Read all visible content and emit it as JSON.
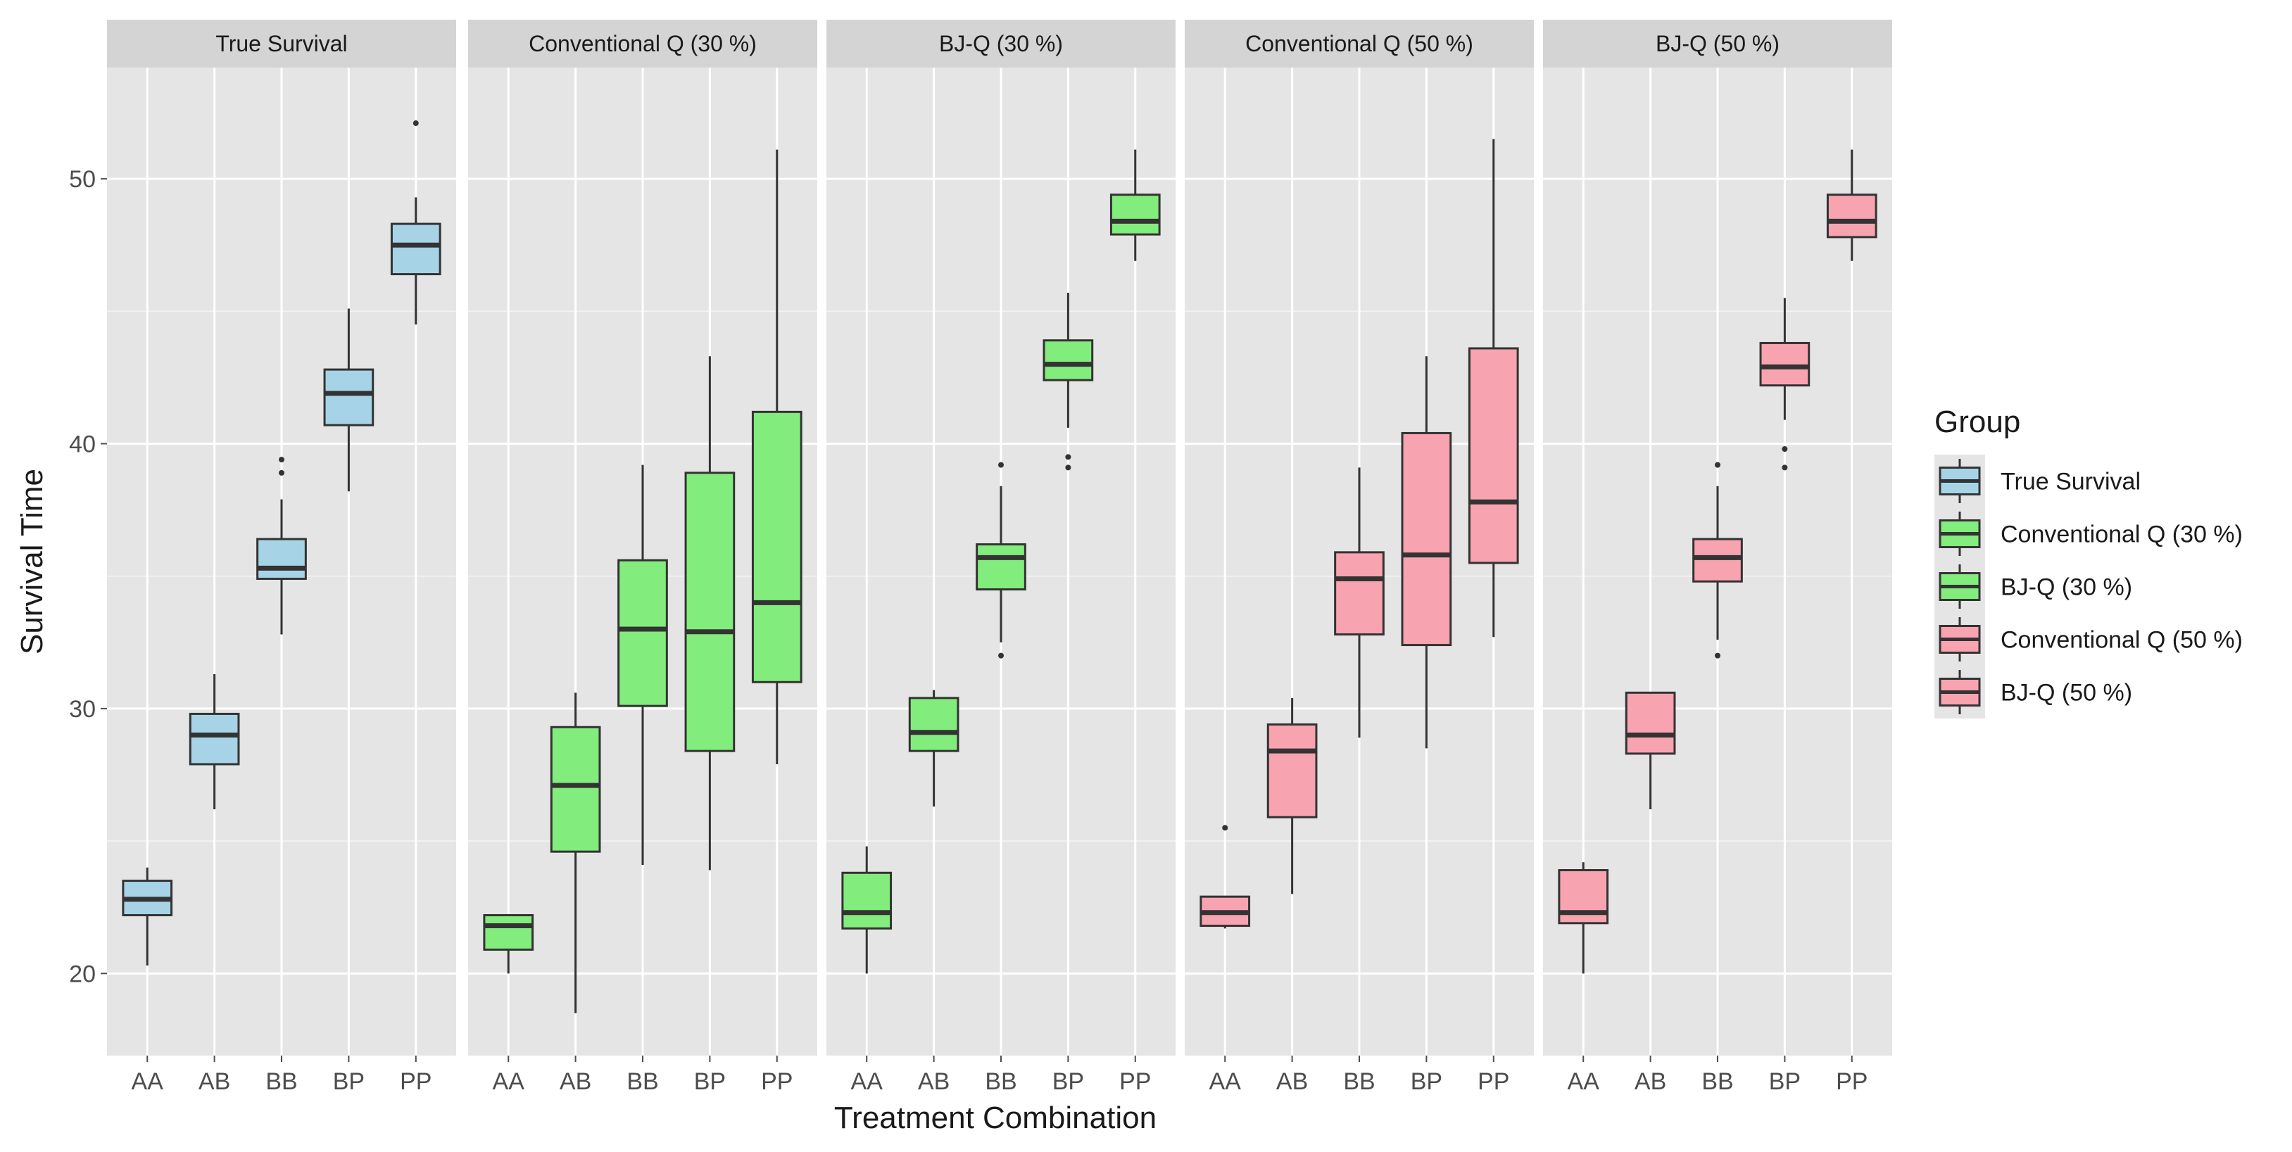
{
  "chart_data": {
    "type": "boxplot",
    "xlabel": "Treatment Combination",
    "ylabel": "Survival Time",
    "ylim": [
      16.9,
      54.2
    ],
    "yticks": [
      20,
      30,
      40,
      50
    ],
    "categories": [
      "AA",
      "AB",
      "BB",
      "BP",
      "PP"
    ],
    "legend": {
      "title": "Group",
      "position": "right",
      "items": [
        {
          "label": "True Survival",
          "color": "#a6d4e6"
        },
        {
          "label": "Conventional Q (30 %)",
          "color": "#82ec7d"
        },
        {
          "label": "BJ-Q (30 %)",
          "color": "#82ec7d"
        },
        {
          "label": "Conventional Q (50 %)",
          "color": "#f8a3b0"
        },
        {
          "label": "BJ-Q (50 %)",
          "color": "#f8a3b0"
        }
      ]
    },
    "colors": {
      "panel_bg": "#e5e5e5",
      "strip_bg": "#d4d4d4",
      "grid": "#ffffff",
      "box_line": "#333333",
      "text": "#1a1a1a",
      "tick_text": "#4d4d4d"
    },
    "panels": [
      {
        "title": "True Survival",
        "fill": "#a6d4e6",
        "boxes": [
          {
            "category": "AA",
            "whisker_low": 20.3,
            "q1": 22.2,
            "median": 22.8,
            "q3": 23.5,
            "whisker_high": 24.0,
            "outliers": []
          },
          {
            "category": "AB",
            "whisker_low": 26.2,
            "q1": 27.9,
            "median": 29.0,
            "q3": 29.8,
            "whisker_high": 31.3,
            "outliers": []
          },
          {
            "category": "BB",
            "whisker_low": 32.8,
            "q1": 34.9,
            "median": 35.3,
            "q3": 36.4,
            "whisker_high": 37.9,
            "outliers": [
              38.9,
              39.4
            ]
          },
          {
            "category": "BP",
            "whisker_low": 38.2,
            "q1": 40.7,
            "median": 41.9,
            "q3": 42.8,
            "whisker_high": 45.1,
            "outliers": []
          },
          {
            "category": "PP",
            "whisker_low": 44.5,
            "q1": 46.4,
            "median": 47.5,
            "q3": 48.3,
            "whisker_high": 49.3,
            "outliers": [
              52.1
            ]
          }
        ]
      },
      {
        "title": "Conventional Q (30 %)",
        "fill": "#82ec7d",
        "boxes": [
          {
            "category": "AA",
            "whisker_low": 20.0,
            "q1": 20.9,
            "median": 21.8,
            "q3": 22.2,
            "whisker_high": 22.2,
            "outliers": []
          },
          {
            "category": "AB",
            "whisker_low": 18.5,
            "q1": 24.6,
            "median": 27.1,
            "q3": 29.3,
            "whisker_high": 30.6,
            "outliers": []
          },
          {
            "category": "BB",
            "whisker_low": 24.1,
            "q1": 30.1,
            "median": 33.0,
            "q3": 35.6,
            "whisker_high": 39.2,
            "outliers": []
          },
          {
            "category": "BP",
            "whisker_low": 23.9,
            "q1": 28.4,
            "median": 32.9,
            "q3": 38.9,
            "whisker_high": 43.3,
            "outliers": []
          },
          {
            "category": "PP",
            "whisker_low": 27.9,
            "q1": 31.0,
            "median": 34.0,
            "q3": 41.2,
            "whisker_high": 51.1,
            "outliers": []
          }
        ]
      },
      {
        "title": "BJ-Q (30 %)",
        "fill": "#82ec7d",
        "boxes": [
          {
            "category": "AA",
            "whisker_low": 20.0,
            "q1": 21.7,
            "median": 22.3,
            "q3": 23.8,
            "whisker_high": 24.8,
            "outliers": []
          },
          {
            "category": "AB",
            "whisker_low": 26.3,
            "q1": 28.4,
            "median": 29.1,
            "q3": 30.4,
            "whisker_high": 30.7,
            "outliers": []
          },
          {
            "category": "BB",
            "whisker_low": 32.5,
            "q1": 34.5,
            "median": 35.7,
            "q3": 36.2,
            "whisker_high": 38.4,
            "outliers": [
              32.0,
              39.2
            ]
          },
          {
            "category": "BP",
            "whisker_low": 40.6,
            "q1": 42.4,
            "median": 43.0,
            "q3": 43.9,
            "whisker_high": 45.7,
            "outliers": [
              39.1,
              39.5
            ]
          },
          {
            "category": "PP",
            "whisker_low": 46.9,
            "q1": 47.9,
            "median": 48.4,
            "q3": 49.4,
            "whisker_high": 51.1,
            "outliers": []
          }
        ]
      },
      {
        "title": "Conventional Q (50 %)",
        "fill": "#f8a3b0",
        "boxes": [
          {
            "category": "AA",
            "whisker_low": 21.7,
            "q1": 21.8,
            "median": 22.3,
            "q3": 22.9,
            "whisker_high": 22.9,
            "outliers": [
              25.5
            ]
          },
          {
            "category": "AB",
            "whisker_low": 23.0,
            "q1": 25.9,
            "median": 28.4,
            "q3": 29.4,
            "whisker_high": 30.4,
            "outliers": []
          },
          {
            "category": "BB",
            "whisker_low": 28.9,
            "q1": 32.8,
            "median": 34.9,
            "q3": 35.9,
            "whisker_high": 39.1,
            "outliers": []
          },
          {
            "category": "BP",
            "whisker_low": 28.5,
            "q1": 32.4,
            "median": 35.8,
            "q3": 40.4,
            "whisker_high": 43.3,
            "outliers": []
          },
          {
            "category": "PP",
            "whisker_low": 32.7,
            "q1": 35.5,
            "median": 37.8,
            "q3": 43.6,
            "whisker_high": 51.5,
            "outliers": []
          }
        ]
      },
      {
        "title": "BJ-Q (50 %)",
        "fill": "#f8a3b0",
        "boxes": [
          {
            "category": "AA",
            "whisker_low": 20.0,
            "q1": 21.9,
            "median": 22.3,
            "q3": 23.9,
            "whisker_high": 24.2,
            "outliers": []
          },
          {
            "category": "AB",
            "whisker_low": 26.2,
            "q1": 28.3,
            "median": 29.0,
            "q3": 30.6,
            "whisker_high": 30.6,
            "outliers": []
          },
          {
            "category": "BB",
            "whisker_low": 32.6,
            "q1": 34.8,
            "median": 35.7,
            "q3": 36.4,
            "whisker_high": 38.4,
            "outliers": [
              32.0,
              39.2
            ]
          },
          {
            "category": "BP",
            "whisker_low": 40.9,
            "q1": 42.2,
            "median": 42.9,
            "q3": 43.8,
            "whisker_high": 45.5,
            "outliers": [
              39.1,
              39.8
            ]
          },
          {
            "category": "PP",
            "whisker_low": 46.9,
            "q1": 47.8,
            "median": 48.4,
            "q3": 49.4,
            "whisker_high": 51.1,
            "outliers": []
          }
        ]
      }
    ]
  }
}
